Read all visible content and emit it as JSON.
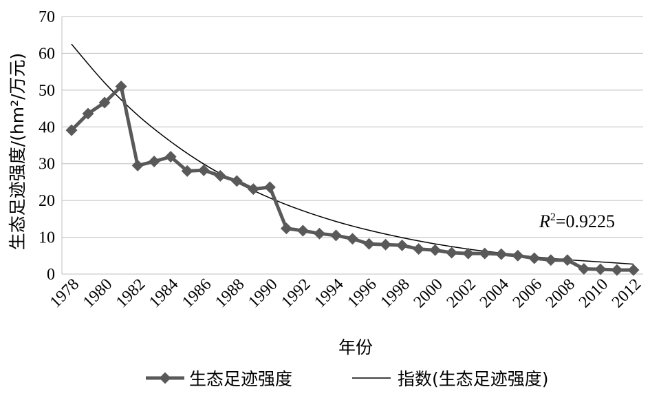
{
  "chart_data": {
    "type": "line",
    "xlabel": "年份",
    "ylabel": "生态足迹强度/(hm²/万元)",
    "ylim": [
      0,
      70
    ],
    "yticks": [
      0,
      10,
      20,
      30,
      40,
      50,
      60,
      70
    ],
    "xlim": [
      1978,
      2012
    ],
    "xticks": [
      1978,
      1980,
      1982,
      1984,
      1986,
      1988,
      1990,
      1992,
      1994,
      1996,
      1998,
      2000,
      2002,
      2004,
      2006,
      2008,
      2010,
      2012
    ],
    "grid": "horizontal",
    "legend_position": "bottom",
    "annotation": {
      "prefix": "R",
      "sup": "2",
      "suffix": "=0.9225"
    },
    "series": [
      {
        "name": "生态足迹强度",
        "kind": "line-markers",
        "color": "#595959",
        "x": [
          1978,
          1979,
          1980,
          1981,
          1982,
          1983,
          1984,
          1985,
          1986,
          1987,
          1988,
          1989,
          1990,
          1991,
          1992,
          1993,
          1994,
          1995,
          1996,
          1997,
          1998,
          1999,
          2000,
          2001,
          2002,
          2003,
          2004,
          2005,
          2006,
          2007,
          2008,
          2009,
          2010,
          2011,
          2012
        ],
        "values": [
          39.1,
          43.6,
          46.6,
          51.0,
          29.5,
          30.6,
          31.9,
          28.0,
          28.2,
          26.7,
          25.3,
          23.1,
          23.6,
          12.4,
          11.8,
          11.0,
          10.5,
          9.6,
          8.2,
          8.0,
          7.8,
          6.8,
          6.5,
          5.8,
          5.6,
          5.6,
          5.4,
          5.0,
          4.3,
          3.8,
          3.8,
          1.4,
          1.3,
          1.1,
          1.1
        ]
      },
      {
        "name": "指数(生态足迹强度)",
        "kind": "trend",
        "color": "#000000",
        "x": [
          1978,
          1980,
          1982,
          1984,
          1986,
          1988,
          1990,
          1992,
          1994,
          1996,
          1998,
          2000,
          2002,
          2004,
          2006,
          2008,
          2010,
          2012
        ],
        "values": [
          62.5,
          52.0,
          43.2,
          36.0,
          29.9,
          24.9,
          20.7,
          17.2,
          14.3,
          11.9,
          9.9,
          8.2,
          6.8,
          5.7,
          4.7,
          3.9,
          3.3,
          2.7
        ]
      }
    ]
  }
}
